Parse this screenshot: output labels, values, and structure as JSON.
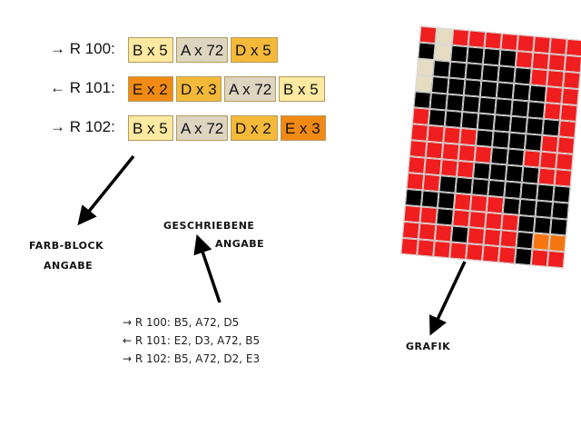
{
  "colors": {
    "A": "#ddd5c0",
    "B": "#fde9a0",
    "D": "#f5b93a",
    "E": "#f18a14",
    "R": "#f01e1e",
    "K": "#000000",
    "C": "#e6dcc2",
    "O": "#f57510"
  },
  "block_rows": [
    {
      "label": "→ R 100:",
      "blocks": [
        {
          "text": "B x 5",
          "color": "B"
        },
        {
          "text": "A x 72",
          "color": "A"
        },
        {
          "text": "D x 5",
          "color": "D"
        }
      ]
    },
    {
      "label": "← R 101:",
      "blocks": [
        {
          "text": "E x 2",
          "color": "E"
        },
        {
          "text": "D x 3",
          "color": "D"
        },
        {
          "text": "A x 72",
          "color": "A"
        },
        {
          "text": "B x 5",
          "color": "B"
        }
      ]
    },
    {
      "label": "→ R 102:",
      "blocks": [
        {
          "text": "B x 5",
          "color": "B"
        },
        {
          "text": "A x 72",
          "color": "A"
        },
        {
          "text": "D x 2",
          "color": "D"
        },
        {
          "text": "E x 3",
          "color": "E"
        }
      ]
    }
  ],
  "labels": {
    "farb_block_1": "FARB-BLOCK",
    "farb_block_2": "ANGABE",
    "geschrieben_1": "GESCHRIEBENE",
    "geschrieben_2": "ANGABE",
    "grafik": "GRAFIK"
  },
  "written": [
    "→ R 100: B5, A72, D5",
    "← R 101: E2, D3, A72, B5",
    "→ R 102: B5, A72, D2, E3"
  ],
  "grafik_grid": [
    "RCRRRRRRRR",
    "KCKKKKRRRR",
    "CKKKKKKRRR",
    "CKKKKKKKRR",
    "KKKKKKKKRR",
    "RKKKKKKKKR",
    "RRRRKKKKRR",
    "RRRRRKKRRR",
    "RRRRKKKKRR",
    "RRKKKKKKKK",
    "KKKRRRKKKK",
    "RRKRRRRKKK",
    "RRRKRRRKOO",
    "RRRRRRRKRR"
  ]
}
